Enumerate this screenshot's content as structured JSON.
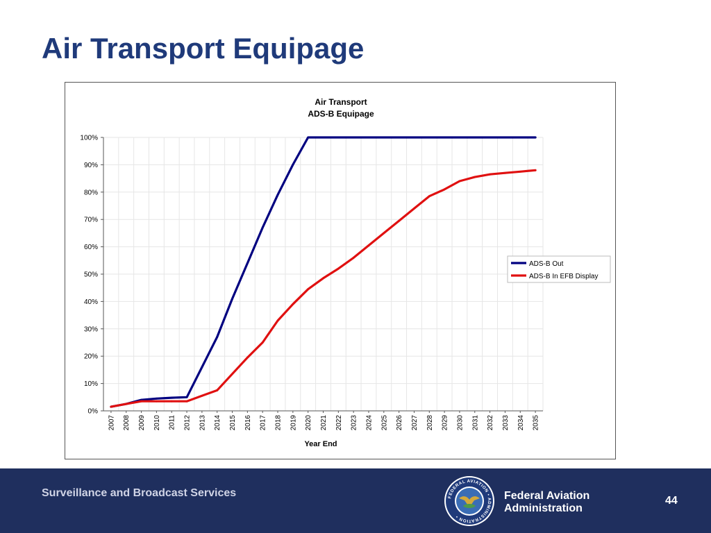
{
  "slide": {
    "title": "Air Transport Equipage",
    "footer_left": "Surveillance and Broadcast Services",
    "agency_line1": "Federal Aviation",
    "agency_line2": "Administration",
    "seal_text": "FEDERAL AVIATION ADMINISTRATION",
    "page_number": "44"
  },
  "chart_data": {
    "type": "line",
    "title_line1": "Air Transport",
    "title_line2": "ADS-B Equipage",
    "xlabel": "Year End",
    "ylabel": "",
    "categories": [
      "2007",
      "2008",
      "2009",
      "2010",
      "2011",
      "2012",
      "2013",
      "2014",
      "2015",
      "2016",
      "2017",
      "2018",
      "2019",
      "2020",
      "2021",
      "2022",
      "2023",
      "2024",
      "2025",
      "2026",
      "2027",
      "2028",
      "2029",
      "2030",
      "2031",
      "2032",
      "2033",
      "2034",
      "2035"
    ],
    "yticks": [
      "0%",
      "10%",
      "20%",
      "30%",
      "40%",
      "50%",
      "60%",
      "70%",
      "80%",
      "90%",
      "100%"
    ],
    "ylim": [
      0,
      100
    ],
    "grid": true,
    "legend_position": "right",
    "series": [
      {
        "name": "ADS-B Out",
        "color": "#000080",
        "values": [
          1.5,
          2.5,
          4,
          4.5,
          4.8,
          5,
          16,
          27,
          41,
          54,
          67,
          79,
          90,
          100,
          100,
          100,
          100,
          100,
          100,
          100,
          100,
          100,
          100,
          100,
          100,
          100,
          100,
          100,
          100
        ]
      },
      {
        "name": "ADS-B In EFB Display",
        "color": "#e01010",
        "values": [
          1.5,
          2.5,
          3.5,
          3.5,
          3.5,
          3.5,
          5.5,
          7.5,
          13.5,
          19.5,
          25,
          33,
          39,
          44.5,
          48.5,
          52,
          56,
          60.5,
          65,
          69.5,
          74,
          78.5,
          81,
          84,
          85.5,
          86.5,
          87,
          87.5,
          88
        ]
      }
    ]
  }
}
